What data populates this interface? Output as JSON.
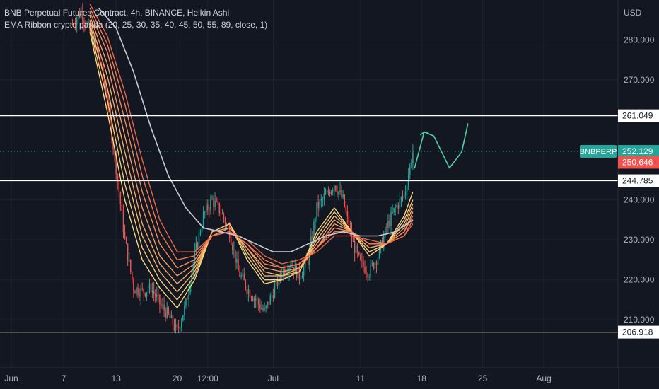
{
  "legend": {
    "line1": "BNB Perpetual Futures Contract, 4h, BINANCE, Heikin Ashi",
    "line2": "EMA Ribbon crypto panda (20, 25, 30, 35, 40, 45, 50, 55, 89, close, 1)"
  },
  "chart_data": {
    "type": "candlestick",
    "currency_label": "USD",
    "y_ticks": [
      210,
      220,
      230,
      240,
      270,
      280
    ],
    "y_tick_labels": [
      "210.000",
      "220.000",
      "230.000",
      "240.000",
      "270.000",
      "280.000"
    ],
    "x_ticks": [
      {
        "label": "Jun",
        "d": 0
      },
      {
        "label": "7",
        "d": 6
      },
      {
        "label": "13",
        "d": 12
      },
      {
        "label": "20",
        "d": 19
      },
      {
        "label": "12:00",
        "d": 22.5
      },
      {
        "label": "Jul",
        "d": 30
      },
      {
        "label": "11",
        "d": 40
      },
      {
        "label": "18",
        "d": 47
      },
      {
        "label": "25",
        "d": 54
      },
      {
        "label": "Aug",
        "d": 61
      }
    ],
    "ylim": [
      198,
      290
    ],
    "xlim": [
      -1.3,
      69.5
    ],
    "price_label": {
      "text": "BNBPERP",
      "value": 252.129,
      "value_label": "252.129"
    },
    "ema_label": {
      "value": 250.646,
      "value_label": "250.646"
    },
    "horizontal_levels": [
      {
        "value": 261.049,
        "label": "261.049"
      },
      {
        "value": 244.785,
        "label": "244.785"
      },
      {
        "value": 206.918,
        "label": "206.918"
      }
    ],
    "price_path": [
      [
        7,
        284
      ],
      [
        8,
        287
      ],
      [
        9,
        282
      ],
      [
        10,
        276
      ],
      [
        11,
        265
      ],
      [
        12,
        248
      ],
      [
        13,
        230
      ],
      [
        14,
        218
      ],
      [
        15,
        217
      ],
      [
        16,
        218
      ],
      [
        17,
        214
      ],
      [
        18,
        211
      ],
      [
        19,
        207
      ],
      [
        20,
        214
      ],
      [
        21,
        226
      ],
      [
        22,
        236
      ],
      [
        23,
        240
      ],
      [
        24,
        237
      ],
      [
        25,
        232
      ],
      [
        26,
        222
      ],
      [
        27,
        218
      ],
      [
        28,
        215
      ],
      [
        29,
        212
      ],
      [
        30,
        217
      ],
      [
        31,
        222
      ],
      [
        32,
        224
      ],
      [
        33,
        221
      ],
      [
        34,
        225
      ],
      [
        35,
        238
      ],
      [
        36,
        241
      ],
      [
        37,
        244
      ],
      [
        38,
        240
      ],
      [
        39,
        230
      ],
      [
        40,
        224
      ],
      [
        41,
        222
      ],
      [
        42,
        226
      ],
      [
        43,
        233
      ],
      [
        44,
        238
      ],
      [
        45,
        241
      ],
      [
        46,
        252
      ]
    ],
    "ema_ribbon": [
      {
        "name": "EMA 20",
        "color": "#ffe082",
        "points": [
          [
            9,
            282
          ],
          [
            11,
            262
          ],
          [
            13,
            240
          ],
          [
            15,
            225
          ],
          [
            17,
            218
          ],
          [
            19,
            213
          ],
          [
            21,
            220
          ],
          [
            23,
            232
          ],
          [
            25,
            234
          ],
          [
            27,
            225
          ],
          [
            29,
            219
          ],
          [
            31,
            220
          ],
          [
            33,
            222
          ],
          [
            35,
            232
          ],
          [
            37,
            238
          ],
          [
            39,
            232
          ],
          [
            41,
            226
          ],
          [
            43,
            229
          ],
          [
            45,
            236
          ],
          [
            46,
            242
          ]
        ]
      },
      {
        "name": "EMA 25",
        "color": "#ffd17a",
        "points": [
          [
            9,
            283
          ],
          [
            11,
            265
          ],
          [
            13,
            244
          ],
          [
            15,
            228
          ],
          [
            17,
            220
          ],
          [
            19,
            215
          ],
          [
            21,
            221
          ],
          [
            23,
            232
          ],
          [
            25,
            234
          ],
          [
            27,
            226
          ],
          [
            29,
            220
          ],
          [
            31,
            220
          ],
          [
            33,
            222
          ],
          [
            35,
            231
          ],
          [
            37,
            237
          ],
          [
            39,
            232
          ],
          [
            41,
            227
          ],
          [
            43,
            229
          ],
          [
            45,
            235
          ],
          [
            46,
            240
          ]
        ]
      },
      {
        "name": "EMA 30",
        "color": "#ffc172",
        "points": [
          [
            9,
            284
          ],
          [
            11,
            268
          ],
          [
            13,
            248
          ],
          [
            15,
            231
          ],
          [
            17,
            222
          ],
          [
            19,
            217
          ],
          [
            21,
            222
          ],
          [
            23,
            232
          ],
          [
            25,
            234
          ],
          [
            27,
            227
          ],
          [
            29,
            221
          ],
          [
            31,
            221
          ],
          [
            33,
            222
          ],
          [
            35,
            230
          ],
          [
            37,
            236
          ],
          [
            39,
            232
          ],
          [
            41,
            227
          ],
          [
            43,
            229
          ],
          [
            45,
            234
          ],
          [
            46,
            239
          ]
        ]
      },
      {
        "name": "EMA 35",
        "color": "#ffb06a",
        "points": [
          [
            9,
            285
          ],
          [
            11,
            271
          ],
          [
            13,
            252
          ],
          [
            15,
            234
          ],
          [
            17,
            224
          ],
          [
            19,
            219
          ],
          [
            21,
            223
          ],
          [
            23,
            232
          ],
          [
            25,
            233
          ],
          [
            27,
            228
          ],
          [
            29,
            222
          ],
          [
            31,
            221
          ],
          [
            33,
            223
          ],
          [
            35,
            229
          ],
          [
            37,
            235
          ],
          [
            39,
            232
          ],
          [
            41,
            228
          ],
          [
            43,
            229
          ],
          [
            45,
            233
          ],
          [
            46,
            238
          ]
        ]
      },
      {
        "name": "EMA 40",
        "color": "#ff9f62",
        "points": [
          [
            9,
            286
          ],
          [
            11,
            274
          ],
          [
            13,
            256
          ],
          [
            15,
            238
          ],
          [
            17,
            226
          ],
          [
            19,
            221
          ],
          [
            21,
            224
          ],
          [
            23,
            231
          ],
          [
            25,
            233
          ],
          [
            27,
            228
          ],
          [
            29,
            223
          ],
          [
            31,
            222
          ],
          [
            33,
            223
          ],
          [
            35,
            228
          ],
          [
            37,
            234
          ],
          [
            39,
            232
          ],
          [
            41,
            228
          ],
          [
            43,
            229
          ],
          [
            45,
            232
          ],
          [
            46,
            237
          ]
        ]
      },
      {
        "name": "EMA 45",
        "color": "#ff8f5a",
        "points": [
          [
            9,
            287
          ],
          [
            11,
            277
          ],
          [
            13,
            260
          ],
          [
            15,
            242
          ],
          [
            17,
            229
          ],
          [
            19,
            223
          ],
          [
            21,
            225
          ],
          [
            23,
            231
          ],
          [
            25,
            232
          ],
          [
            27,
            229
          ],
          [
            29,
            224
          ],
          [
            31,
            223
          ],
          [
            33,
            224
          ],
          [
            35,
            228
          ],
          [
            37,
            233
          ],
          [
            39,
            232
          ],
          [
            41,
            229
          ],
          [
            43,
            229
          ],
          [
            45,
            232
          ],
          [
            46,
            236
          ]
        ]
      },
      {
        "name": "EMA 50",
        "color": "#ff7e52",
        "points": [
          [
            9,
            288
          ],
          [
            11,
            279
          ],
          [
            13,
            264
          ],
          [
            15,
            246
          ],
          [
            17,
            232
          ],
          [
            19,
            225
          ],
          [
            21,
            226
          ],
          [
            23,
            231
          ],
          [
            25,
            232
          ],
          [
            27,
            229
          ],
          [
            29,
            225
          ],
          [
            31,
            223
          ],
          [
            33,
            224
          ],
          [
            35,
            228
          ],
          [
            37,
            232
          ],
          [
            39,
            232
          ],
          [
            41,
            229
          ],
          [
            43,
            229
          ],
          [
            45,
            231
          ],
          [
            46,
            235
          ]
        ]
      },
      {
        "name": "EMA 55",
        "color": "#f26b4a",
        "points": [
          [
            9,
            289
          ],
          [
            11,
            281
          ],
          [
            13,
            267
          ],
          [
            15,
            250
          ],
          [
            17,
            235
          ],
          [
            19,
            227
          ],
          [
            21,
            227
          ],
          [
            23,
            231
          ],
          [
            25,
            232
          ],
          [
            27,
            230
          ],
          [
            29,
            226
          ],
          [
            31,
            224
          ],
          [
            33,
            225
          ],
          [
            35,
            227
          ],
          [
            37,
            231
          ],
          [
            39,
            231
          ],
          [
            41,
            230
          ],
          [
            43,
            229
          ],
          [
            45,
            231
          ],
          [
            46,
            234
          ]
        ]
      },
      {
        "name": "EMA 89",
        "color": "#c9c9d9",
        "points": [
          [
            10,
            288
          ],
          [
            12,
            283
          ],
          [
            14,
            272
          ],
          [
            16,
            258
          ],
          [
            18,
            246
          ],
          [
            20,
            238
          ],
          [
            22,
            233
          ],
          [
            24,
            232
          ],
          [
            26,
            231
          ],
          [
            28,
            229
          ],
          [
            30,
            227
          ],
          [
            32,
            227
          ],
          [
            34,
            229
          ],
          [
            36,
            231
          ],
          [
            38,
            232
          ],
          [
            40,
            231
          ],
          [
            42,
            231
          ],
          [
            44,
            232
          ],
          [
            46,
            235
          ]
        ]
      }
    ],
    "annotation_path": [
      [
        46.2,
        248
      ],
      [
        47.3,
        257
      ],
      [
        48.4,
        256
      ],
      [
        50.2,
        248
      ],
      [
        51.6,
        252
      ],
      [
        52.3,
        259
      ]
    ],
    "annotation_arrow": [
      [
        47.3,
        257
      ],
      [
        48.4,
        256
      ]
    ],
    "colors": {
      "background": "#131722",
      "grid": "#1f2330",
      "axis_text": "#b2b5be",
      "bull": "#26a69a",
      "bear": "#ef5350",
      "level_line": "#ffffff",
      "price_tag": "#26a69a",
      "ema_tag": "#ef5350",
      "annotation": "#4fd1a5"
    }
  }
}
